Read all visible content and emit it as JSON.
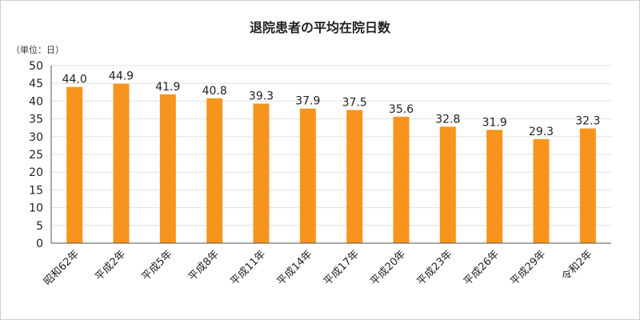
{
  "chart_data": {
    "type": "bar",
    "title": "退院患者の平均在院日数",
    "unit_label": "（単位：日）",
    "xlabel": "",
    "ylabel": "",
    "ylim": [
      0,
      50
    ],
    "yticks": [
      0,
      5,
      10,
      15,
      20,
      25,
      30,
      35,
      40,
      45,
      50
    ],
    "grid": true,
    "legend": "none",
    "bar_color": "#F7941D",
    "categories": [
      "昭和62年",
      "平成2年",
      "平成5年",
      "平成8年",
      "平成11年",
      "平成14年",
      "平成17年",
      "平成20年",
      "平成23年",
      "平成26年",
      "平成29年",
      "令和2年"
    ],
    "values": [
      44.0,
      44.9,
      41.9,
      40.8,
      39.3,
      37.9,
      37.5,
      35.6,
      32.8,
      31.9,
      29.3,
      32.3
    ],
    "value_labels": [
      "44.0",
      "44.9",
      "41.9",
      "40.8",
      "39.3",
      "37.9",
      "37.5",
      "35.6",
      "32.8",
      "31.9",
      "29.3",
      "32.3"
    ]
  }
}
